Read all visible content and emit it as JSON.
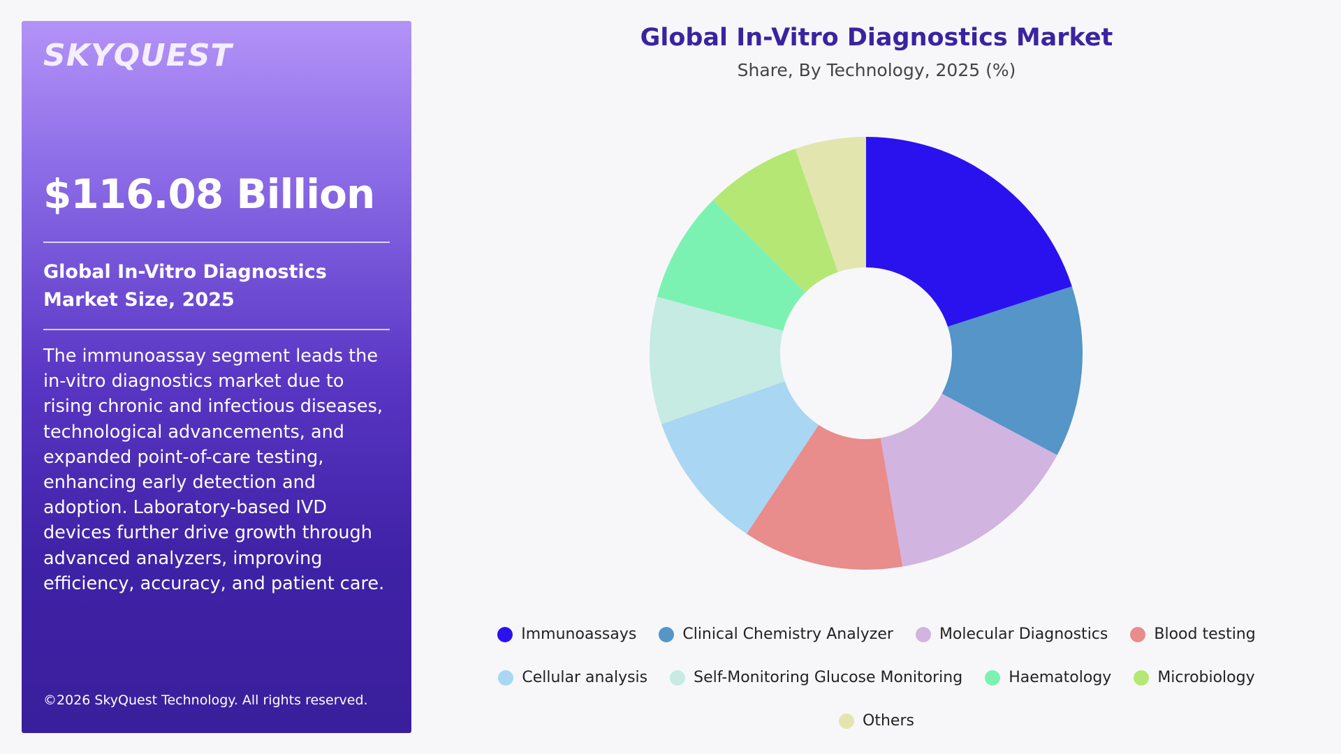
{
  "panel": {
    "logo": "SKYQUEST",
    "market_value": "$116.08 Billion",
    "subtitle": "Global In-Vitro Diagnostics Market Size, 2025",
    "description": "The immunoassay segment leads the in-vitro diagnostics market due to rising chronic and infectious diseases, technological advancements, and expanded point-of-care testing, enhancing early detection and adoption. Laboratory-based IVD devices further drive growth through advanced analyzers, improving efficiency, accuracy, and patient care.",
    "copyright": "©2026 SkyQuest Technology. All rights reserved."
  },
  "chart_data": {
    "type": "pie",
    "donut": true,
    "title": "Global In-Vitro Diagnostics Market",
    "subtitle": "Share, By Technology, 2025 (%)",
    "legend_position": "bottom",
    "slices": [
      {
        "label": "Immunoassays",
        "value": 20,
        "color": "#2a12ef"
      },
      {
        "label": "Clinical Chemistry Analyzer",
        "value": 12.8,
        "color": "#5595c8"
      },
      {
        "label": "Molecular Diagnostics",
        "value": 14.5,
        "color": "#d2b4e0"
      },
      {
        "label": "Blood testing",
        "value": 12,
        "color": "#e88c8c"
      },
      {
        "label": "Cellular analysis",
        "value": 10.4,
        "color": "#a9d6f2"
      },
      {
        "label": "Self-Monitoring Glucose Monitoring",
        "value": 9.5,
        "color": "#c5ebe3"
      },
      {
        "label": "Haematology",
        "value": 8.3,
        "color": "#7cf2b2"
      },
      {
        "label": "Microbiology",
        "value": 7.2,
        "color": "#b4e774"
      },
      {
        "label": "Others",
        "value": 5.3,
        "color": "#e2e6ae"
      }
    ]
  }
}
